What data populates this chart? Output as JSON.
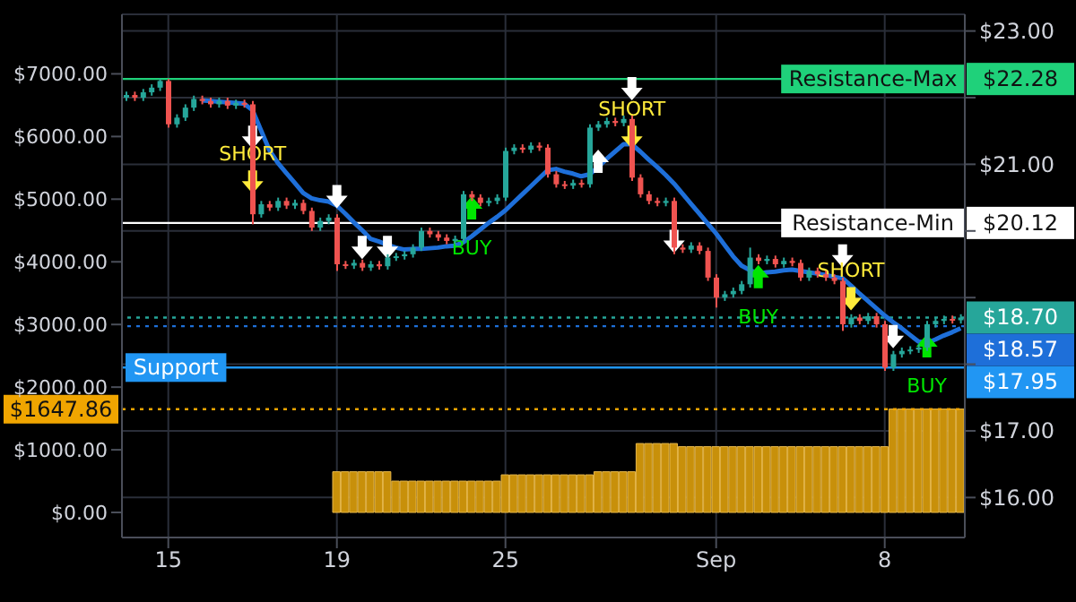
{
  "chart_data": {
    "type": "candlestick",
    "categories": [
      null,
      null,
      null,
      null,
      null,
      "15",
      null,
      null,
      null,
      null,
      null,
      null,
      null,
      null,
      null,
      null,
      null,
      null,
      null,
      null,
      null,
      null,
      null,
      null,
      null,
      "19",
      null,
      null,
      null,
      null,
      null,
      null,
      null,
      null,
      null,
      null,
      null,
      null,
      null,
      null,
      null,
      null,
      null,
      null,
      null,
      "25",
      null,
      null,
      null,
      null,
      null,
      null,
      null,
      null,
      null,
      null,
      null,
      null,
      null,
      null,
      null,
      null,
      null,
      null,
      null,
      null,
      null,
      null,
      null,
      null,
      "Sep",
      null,
      null,
      null,
      null,
      null,
      null,
      null,
      null,
      null,
      null,
      null,
      null,
      null,
      null,
      null,
      null,
      null,
      null,
      null,
      "8",
      null,
      null,
      null,
      null,
      null,
      null,
      null,
      null,
      null
    ],
    "ohlc": [
      [
        22.0,
        22.09,
        21.95,
        22.04
      ],
      [
        22.04,
        22.09,
        21.95,
        22.0
      ],
      [
        22.0,
        22.13,
        21.95,
        22.08
      ],
      [
        22.08,
        22.2,
        22.03,
        22.15
      ],
      [
        22.15,
        22.28,
        22.1,
        22.25
      ],
      [
        22.25,
        22.28,
        21.55,
        21.6
      ],
      [
        21.6,
        21.75,
        21.55,
        21.7
      ],
      [
        21.7,
        21.9,
        21.65,
        21.85
      ],
      [
        21.85,
        22.03,
        21.8,
        21.98
      ],
      [
        21.98,
        22.03,
        21.9,
        21.95
      ],
      [
        21.95,
        22.0,
        21.85,
        21.9
      ],
      [
        21.9,
        22.0,
        21.85,
        21.95
      ],
      [
        21.95,
        22.0,
        21.83,
        21.88
      ],
      [
        21.88,
        21.97,
        21.83,
        21.92
      ],
      [
        21.92,
        21.97,
        21.85,
        21.9
      ],
      [
        21.9,
        21.95,
        20.1,
        20.25
      ],
      [
        20.25,
        20.45,
        20.2,
        20.4
      ],
      [
        20.4,
        20.45,
        20.3,
        20.35
      ],
      [
        20.35,
        20.5,
        20.3,
        20.45
      ],
      [
        20.45,
        20.5,
        20.33,
        20.38
      ],
      [
        20.38,
        20.47,
        20.33,
        20.42
      ],
      [
        20.42,
        20.47,
        20.25,
        20.3
      ],
      [
        20.3,
        20.35,
        20.0,
        20.05
      ],
      [
        20.05,
        20.2,
        20.0,
        20.15
      ],
      [
        20.15,
        20.25,
        20.1,
        20.2
      ],
      [
        20.2,
        20.25,
        19.4,
        19.5
      ],
      [
        19.5,
        19.55,
        19.43,
        19.48
      ],
      [
        19.48,
        19.57,
        19.43,
        19.52
      ],
      [
        19.52,
        19.57,
        19.4,
        19.45
      ],
      [
        19.45,
        19.55,
        19.4,
        19.5
      ],
      [
        19.5,
        19.55,
        19.42,
        19.47
      ],
      [
        19.47,
        19.65,
        19.42,
        19.6
      ],
      [
        19.6,
        19.67,
        19.55,
        19.62
      ],
      [
        19.62,
        19.7,
        19.57,
        19.65
      ],
      [
        19.65,
        19.8,
        19.6,
        19.75
      ],
      [
        19.75,
        20.05,
        19.7,
        20.0
      ],
      [
        20.0,
        20.05,
        19.9,
        19.95
      ],
      [
        19.95,
        20.0,
        19.85,
        19.9
      ],
      [
        19.9,
        19.95,
        19.8,
        19.85
      ],
      [
        19.85,
        19.93,
        19.8,
        19.88
      ],
      [
        19.88,
        20.6,
        19.83,
        20.55
      ],
      [
        20.55,
        20.6,
        20.45,
        20.5
      ],
      [
        20.5,
        20.55,
        20.37,
        20.42
      ],
      [
        20.42,
        20.5,
        20.37,
        20.45
      ],
      [
        20.45,
        20.55,
        20.4,
        20.5
      ],
      [
        20.5,
        21.25,
        20.45,
        21.2
      ],
      [
        21.2,
        21.3,
        21.15,
        21.25
      ],
      [
        21.25,
        21.3,
        21.17,
        21.22
      ],
      [
        21.22,
        21.33,
        21.17,
        21.28
      ],
      [
        21.28,
        21.33,
        21.2,
        21.25
      ],
      [
        21.25,
        21.3,
        20.8,
        20.85
      ],
      [
        20.85,
        20.9,
        20.65,
        20.7
      ],
      [
        20.7,
        20.75,
        20.63,
        20.68
      ],
      [
        20.68,
        20.77,
        20.63,
        20.72
      ],
      [
        20.72,
        20.77,
        20.65,
        20.7
      ],
      [
        20.7,
        21.6,
        20.65,
        21.55
      ],
      [
        21.55,
        21.65,
        21.5,
        21.6
      ],
      [
        21.6,
        21.7,
        21.55,
        21.65
      ],
      [
        21.65,
        21.7,
        21.57,
        21.62
      ],
      [
        21.62,
        21.73,
        21.57,
        21.68
      ],
      [
        21.68,
        21.73,
        20.75,
        20.8
      ],
      [
        20.8,
        20.85,
        20.5,
        20.55
      ],
      [
        20.55,
        20.6,
        20.4,
        20.45
      ],
      [
        20.45,
        20.5,
        20.37,
        20.42
      ],
      [
        20.42,
        20.5,
        20.37,
        20.45
      ],
      [
        20.45,
        20.5,
        19.65,
        19.75
      ],
      [
        19.75,
        19.8,
        19.67,
        19.72
      ],
      [
        19.72,
        19.83,
        19.67,
        19.78
      ],
      [
        19.78,
        19.83,
        19.65,
        19.7
      ],
      [
        19.7,
        19.75,
        19.25,
        19.3
      ],
      [
        19.3,
        19.35,
        18.85,
        19.0
      ],
      [
        19.0,
        19.1,
        18.95,
        19.05
      ],
      [
        19.05,
        19.15,
        19.0,
        19.1
      ],
      [
        19.1,
        19.25,
        19.05,
        19.2
      ],
      [
        19.2,
        19.75,
        19.15,
        19.6
      ],
      [
        19.6,
        19.65,
        19.5,
        19.55
      ],
      [
        19.55,
        19.63,
        19.5,
        19.58
      ],
      [
        19.58,
        19.63,
        19.45,
        19.5
      ],
      [
        19.5,
        19.6,
        19.45,
        19.55
      ],
      [
        19.55,
        19.6,
        19.47,
        19.52
      ],
      [
        19.52,
        19.57,
        19.25,
        19.3
      ],
      [
        19.3,
        19.45,
        19.25,
        19.4
      ],
      [
        19.4,
        19.45,
        19.3,
        19.35
      ],
      [
        19.35,
        19.4,
        19.25,
        19.3
      ],
      [
        19.3,
        19.35,
        19.2,
        19.25
      ],
      [
        19.25,
        19.3,
        18.5,
        18.6
      ],
      [
        18.6,
        18.75,
        18.55,
        18.7
      ],
      [
        18.7,
        18.75,
        18.6,
        18.65
      ],
      [
        18.65,
        18.77,
        18.6,
        18.72
      ],
      [
        18.72,
        18.77,
        18.55,
        18.6
      ],
      [
        18.6,
        18.65,
        17.9,
        17.95
      ],
      [
        17.95,
        18.2,
        17.9,
        18.15
      ],
      [
        18.15,
        18.25,
        18.1,
        18.2
      ],
      [
        18.2,
        18.27,
        18.15,
        18.22
      ],
      [
        18.22,
        18.3,
        18.17,
        18.25
      ],
      [
        18.25,
        18.65,
        18.2,
        18.6
      ],
      [
        18.6,
        18.7,
        18.55,
        18.65
      ],
      [
        18.65,
        18.73,
        18.6,
        18.68
      ],
      [
        18.68,
        18.73,
        18.61,
        18.66
      ],
      [
        18.66,
        18.75,
        18.61,
        18.7
      ]
    ],
    "colors": [
      "#26a69a",
      "#ef5350",
      "#26a69a",
      "#26a69a",
      "#26a69a",
      "#ef5350",
      "#26a69a",
      "#26a69a",
      "#26a69a",
      "#ef5350",
      "#ef5350",
      "#26a69a",
      "#ef5350",
      "#26a69a",
      "#ef5350",
      "#ef5350",
      "#26a69a",
      "#ef5350",
      "#26a69a",
      "#ef5350",
      "#26a69a",
      "#ef5350",
      "#ef5350",
      "#26a69a",
      "#26a69a",
      "#ef5350",
      "#ef5350",
      "#26a69a",
      "#ef5350",
      "#26a69a",
      "#ef5350",
      "#26a69a",
      "#26a69a",
      "#26a69a",
      "#26a69a",
      "#26a69a",
      "#ef5350",
      "#ef5350",
      "#ef5350",
      "#26a69a",
      "#26a69a",
      "#ef5350",
      "#ef5350",
      "#26a69a",
      "#26a69a",
      "#26a69a",
      "#26a69a",
      "#ef5350",
      "#26a69a",
      "#ef5350",
      "#ef5350",
      "#ef5350",
      "#ef5350",
      "#26a69a",
      "#ef5350",
      "#26a69a",
      "#26a69a",
      "#26a69a",
      "#ef5350",
      "#26a69a",
      "#ef5350",
      "#ef5350",
      "#ef5350",
      "#ef5350",
      "#26a69a",
      "#ef5350",
      "#ef5350",
      "#26a69a",
      "#ef5350",
      "#ef5350",
      "#ef5350",
      "#26a69a",
      "#26a69a",
      "#26a69a",
      "#26a69a",
      "#ef5350",
      "#26a69a",
      "#ef5350",
      "#26a69a",
      "#ef5350",
      "#ef5350",
      "#26a69a",
      "#ef5350",
      "#ef5350",
      "#ef5350",
      "#ef5350",
      "#26a69a",
      "#ef5350",
      "#26a69a",
      "#ef5350",
      "#ef5350",
      "#26a69a",
      "#26a69a",
      "#26a69a",
      "#26a69a",
      "#26a69a",
      "#26a69a",
      "#26a69a",
      "#ef5350",
      "#26a69a"
    ],
    "series": [
      {
        "type": "line",
        "color": "#1e6fd9",
        "values": [
          null,
          null,
          null,
          null,
          null,
          null,
          null,
          null,
          null,
          21.96,
          21.95,
          21.94,
          21.93,
          21.92,
          21.91,
          21.81,
          21.51,
          21.21,
          21.02,
          20.87,
          20.72,
          20.57,
          20.49,
          20.46,
          20.44,
          20.38,
          20.26,
          20.13,
          20.01,
          19.88,
          19.84,
          19.79,
          19.75,
          19.72,
          19.73,
          19.73,
          19.74,
          19.75,
          19.77,
          19.78,
          19.83,
          19.92,
          20.02,
          20.12,
          20.21,
          20.31,
          20.43,
          20.55,
          20.67,
          20.79,
          20.91,
          20.93,
          20.89,
          20.86,
          20.82,
          20.85,
          20.96,
          21.08,
          21.19,
          21.3,
          21.3,
          21.19,
          21.07,
          20.96,
          20.84,
          20.71,
          20.56,
          20.41,
          20.26,
          20.11,
          19.96,
          19.79,
          19.62,
          19.48,
          19.41,
          19.36,
          19.38,
          19.39,
          19.41,
          19.42,
          19.4,
          19.38,
          19.36,
          19.34,
          19.31,
          19.29,
          19.18,
          19.06,
          18.95,
          18.84,
          18.73,
          18.63,
          18.54,
          18.44,
          18.34,
          18.32,
          18.37,
          18.43,
          18.48,
          18.54
        ]
      },
      {
        "type": "bar",
        "axis": "y2",
        "color": "#c8900a",
        "values": [
          0,
          0,
          0,
          0,
          0,
          0,
          0,
          0,
          0,
          0,
          0,
          0,
          0,
          0,
          0,
          0,
          0,
          0,
          0,
          0,
          0,
          0,
          0,
          0,
          0,
          650,
          650,
          650,
          650,
          650,
          650,
          650,
          500,
          500,
          500,
          500,
          500,
          500,
          500,
          500,
          500,
          500,
          500,
          500,
          500,
          600,
          600,
          600,
          600,
          600,
          600,
          600,
          600,
          600,
          600,
          600,
          650,
          650,
          650,
          650,
          650,
          1100,
          1100,
          1100,
          1100,
          1100,
          1050,
          1050,
          1050,
          1050,
          1050,
          1050,
          1050,
          1050,
          1050,
          1050,
          1050,
          1050,
          1050,
          1050,
          1050,
          1050,
          1050,
          1050,
          1050,
          1050,
          1050,
          1050,
          1050,
          1050,
          1050,
          1650,
          1650,
          1650,
          1650,
          1650,
          1650,
          1650,
          1650,
          1650
        ]
      },
      {
        "type": "scatter",
        "color": "#ffffff",
        "marker": "triangle",
        "values": [
          null,
          null,
          null,
          null,
          null,
          null,
          null,
          null,
          null,
          null,
          null,
          null,
          null,
          null,
          null,
          21.39,
          null,
          null,
          null,
          null,
          null,
          null,
          null,
          null,
          null,
          20.5,
          null,
          null,
          19.74,
          null,
          null,
          19.74,
          null,
          null,
          null,
          null,
          null,
          null,
          null,
          null,
          null,
          null,
          null,
          null,
          null,
          null,
          null,
          null,
          null,
          null,
          null,
          null,
          null,
          null,
          null,
          null,
          21.06,
          null,
          null,
          null,
          22.12,
          null,
          null,
          null,
          null,
          19.83,
          null,
          null,
          null,
          null,
          null,
          null,
          null,
          null,
          null,
          null,
          null,
          null,
          null,
          null,
          null,
          null,
          null,
          null,
          null,
          19.61,
          null,
          null,
          null,
          null,
          null,
          18.4,
          null,
          null,
          null,
          null,
          null,
          null,
          null,
          null
        ]
      },
      {
        "type": "scatter",
        "name": "SHORT",
        "color": "#ffeb3b",
        "marker": "triangle",
        "values": [
          null,
          null,
          null,
          null,
          null,
          null,
          null,
          null,
          null,
          null,
          null,
          null,
          null,
          null,
          null,
          20.72,
          null,
          null,
          null,
          null,
          null,
          null,
          null,
          null,
          null,
          null,
          null,
          null,
          null,
          null,
          null,
          null,
          null,
          null,
          null,
          null,
          null,
          null,
          null,
          null,
          null,
          null,
          null,
          null,
          null,
          null,
          null,
          null,
          null,
          null,
          null,
          null,
          null,
          null,
          null,
          null,
          null,
          null,
          null,
          null,
          21.39,
          null,
          null,
          null,
          null,
          null,
          null,
          null,
          null,
          null,
          null,
          null,
          null,
          null,
          null,
          null,
          null,
          null,
          null,
          null,
          null,
          null,
          null,
          null,
          null,
          null,
          18.97,
          null,
          null,
          null,
          null,
          null,
          null,
          null,
          null,
          null,
          null,
          null,
          null,
          null
        ]
      },
      {
        "type": "scatter",
        "name": "BUY",
        "color": "#00e600",
        "marker": "triangle",
        "values": [
          null,
          null,
          null,
          null,
          null,
          null,
          null,
          null,
          null,
          null,
          null,
          null,
          null,
          null,
          null,
          null,
          null,
          null,
          null,
          null,
          null,
          null,
          null,
          null,
          null,
          null,
          null,
          null,
          null,
          null,
          null,
          null,
          null,
          null,
          null,
          null,
          null,
          null,
          null,
          null,
          null,
          20.36,
          null,
          null,
          null,
          null,
          null,
          null,
          null,
          null,
          null,
          null,
          null,
          null,
          null,
          null,
          null,
          null,
          null,
          null,
          null,
          null,
          null,
          null,
          null,
          null,
          null,
          null,
          null,
          null,
          null,
          null,
          null,
          null,
          null,
          19.33,
          null,
          null,
          null,
          null,
          null,
          null,
          null,
          null,
          null,
          null,
          null,
          null,
          null,
          null,
          null,
          null,
          null,
          null,
          null,
          18.29,
          null,
          null,
          null,
          null
        ]
      }
    ],
    "ylim": [
      15.4,
      23.25
    ],
    "yticks": [
      {
        "value": 23,
        "label": "$23.00"
      },
      {
        "value": 22,
        "label": null
      },
      {
        "value": 21,
        "label": "$21.00"
      },
      {
        "value": 20,
        "label": null
      },
      {
        "value": 19,
        "label": null
      },
      {
        "value": 18,
        "label": null
      },
      {
        "value": 17,
        "label": "$17.00"
      },
      {
        "value": 16,
        "label": "$16.00"
      }
    ],
    "y2lim": [
      -400,
      7950
    ],
    "y2ticks": [
      {
        "value": 0,
        "label": "$0.00"
      },
      {
        "value": 1000,
        "label": "$1000.00"
      },
      {
        "value": 2000,
        "label": "$2000.00"
      },
      {
        "value": 3000,
        "label": "$3000.00"
      },
      {
        "value": 4000,
        "label": "$4000.00"
      },
      {
        "value": 5000,
        "label": "$5000.00"
      },
      {
        "value": 6000,
        "label": "$6000.00"
      },
      {
        "value": 7000,
        "label": "$7000.00"
      }
    ],
    "ref_lines": [
      {
        "axis": "y",
        "value": 22.28,
        "label": "Resistance-Max",
        "color": "#1fd17a"
      },
      {
        "axis": "y",
        "value": 20.12,
        "label": "Resistance-Min",
        "color": "#ffffff"
      },
      {
        "axis": "y",
        "value": 17.95,
        "label": "Support",
        "color": "#2196f3"
      },
      {
        "axis": "y",
        "value": 18.7,
        "label": "$18.70",
        "color": "#26a69a",
        "line_style": "dotted"
      },
      {
        "axis": "y",
        "value": 18.57,
        "label": "$18.57",
        "color": "#1e6fd9",
        "line_style": "dotted"
      },
      {
        "axis": "y2",
        "value": 1647.86,
        "label": "$1647.86",
        "color": "#f0a500",
        "line_style": "dotted"
      }
    ],
    "annotations": [
      "$22.28",
      "$20.12",
      "$17.95"
    ],
    "grid": true
  }
}
